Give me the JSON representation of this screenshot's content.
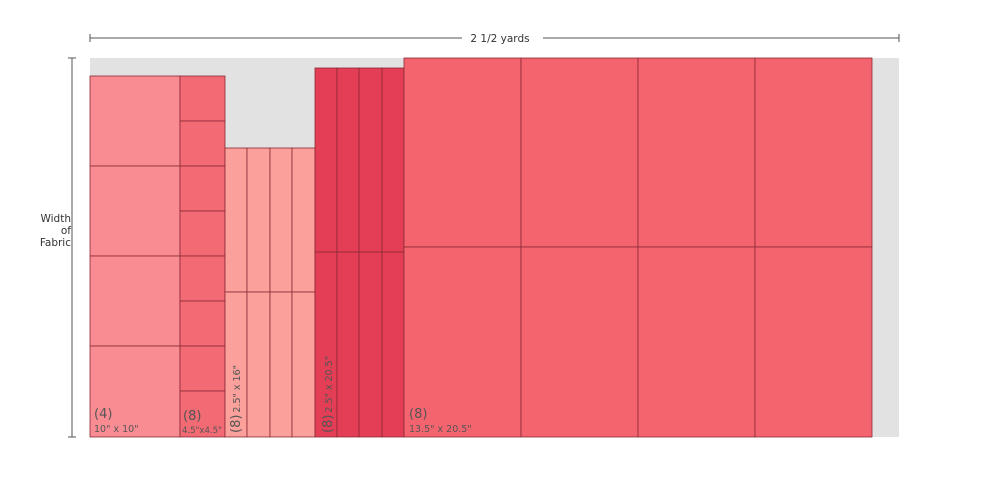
{
  "dimensions": {
    "length": "2 1/2 yards",
    "width": [
      "Width",
      "of",
      "Fabric"
    ]
  },
  "pieces": [
    {
      "count": "(4)",
      "size": "10\" x 10\""
    },
    {
      "count": "(8)",
      "size": "4.5\"x4.5\""
    },
    {
      "count": "(8)",
      "size": "2.5\" x 16\""
    },
    {
      "count": "(8)",
      "size": "2.5\" x 20.5\""
    },
    {
      "count": "(8)",
      "size": "13.5\" x 20.5\""
    }
  ]
}
